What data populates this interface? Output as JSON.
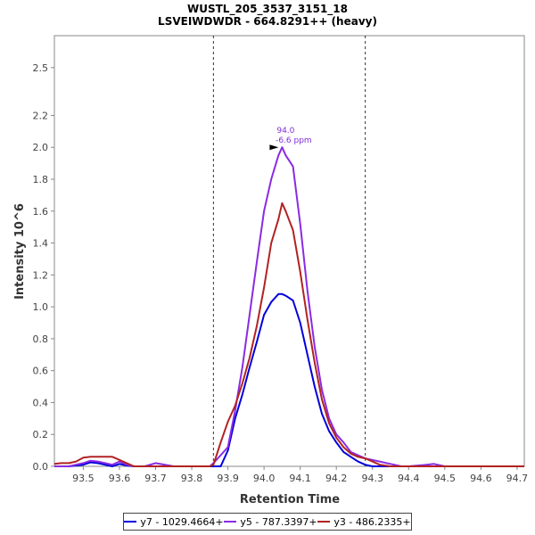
{
  "chart_data": {
    "type": "line",
    "title": "WUSTL_205_3537_3151_18",
    "subtitle": "LSVEIWDWDR - 664.8291++ (heavy)",
    "xlabel": "Retention Time",
    "ylabel": "Intensity 10^6",
    "xlim": [
      93.42,
      94.72
    ],
    "ylim": [
      0,
      2.7
    ],
    "x_ticks": [
      "93.5",
      "93.6",
      "93.7",
      "93.8",
      "93.9",
      "94.0",
      "94.1",
      "94.2",
      "94.3",
      "94.4",
      "94.5",
      "94.6",
      "94.7"
    ],
    "y_ticks": [
      "0.0",
      "0.2",
      "0.4",
      "0.6",
      "0.8",
      "1.0",
      "1.2",
      "1.4",
      "1.6",
      "1.8",
      "2.0",
      "2.2",
      "2.5"
    ],
    "boundaries": [
      93.86,
      94.28
    ],
    "annotation": {
      "x": 94.05,
      "y": 2.0,
      "line1": "94.0",
      "line2": "-6.6 ppm"
    },
    "series": [
      {
        "name": "y7 - 1029.4664+",
        "color": "#0000dd",
        "x": [
          93.42,
          93.46,
          93.5,
          93.52,
          93.54,
          93.56,
          93.58,
          93.6,
          93.62,
          93.64,
          93.67,
          93.7,
          93.75,
          93.8,
          93.85,
          93.88,
          93.9,
          93.92,
          93.94,
          93.96,
          93.98,
          94.0,
          94.02,
          94.04,
          94.05,
          94.06,
          94.08,
          94.1,
          94.12,
          94.14,
          94.16,
          94.18,
          94.2,
          94.22,
          94.24,
          94.26,
          94.28,
          94.3,
          94.35,
          94.4,
          94.45,
          94.5,
          94.6,
          94.72
        ],
        "y": [
          0.0,
          0.0,
          0.01,
          0.025,
          0.02,
          0.01,
          0.0,
          0.015,
          0.005,
          0.0,
          0.0,
          0.0,
          0.0,
          0.0,
          0.0,
          0.0,
          0.1,
          0.3,
          0.45,
          0.62,
          0.78,
          0.95,
          1.03,
          1.08,
          1.08,
          1.07,
          1.04,
          0.9,
          0.7,
          0.5,
          0.33,
          0.22,
          0.15,
          0.09,
          0.06,
          0.03,
          0.01,
          0.0,
          0.0,
          0.0,
          0.0,
          0.0,
          0.0,
          0.0
        ]
      },
      {
        "name": "y5 - 787.3397+",
        "color": "#8a2be2",
        "x": [
          93.42,
          93.46,
          93.5,
          93.52,
          93.54,
          93.56,
          93.58,
          93.6,
          93.62,
          93.64,
          93.67,
          93.7,
          93.75,
          93.8,
          93.85,
          93.86,
          93.88,
          93.9,
          93.92,
          93.94,
          93.96,
          93.98,
          94.0,
          94.02,
          94.04,
          94.05,
          94.06,
          94.08,
          94.1,
          94.12,
          94.14,
          94.16,
          94.18,
          94.2,
          94.22,
          94.24,
          94.26,
          94.28,
          94.3,
          94.32,
          94.35,
          94.38,
          94.4,
          94.45,
          94.47,
          94.5,
          94.6,
          94.72
        ],
        "y": [
          0.0,
          0.0,
          0.02,
          0.035,
          0.03,
          0.02,
          0.01,
          0.03,
          0.01,
          0.0,
          0.0,
          0.02,
          0.0,
          0.0,
          0.0,
          0.02,
          0.07,
          0.12,
          0.35,
          0.62,
          0.95,
          1.28,
          1.6,
          1.8,
          1.95,
          2.0,
          1.95,
          1.88,
          1.52,
          1.1,
          0.75,
          0.48,
          0.3,
          0.2,
          0.15,
          0.09,
          0.07,
          0.05,
          0.04,
          0.03,
          0.015,
          0.0,
          0.0,
          0.01,
          0.015,
          0.0,
          0.0,
          0.0
        ]
      },
      {
        "name": "y3 - 486.2335+",
        "color": "#b22222",
        "x": [
          93.42,
          93.44,
          93.46,
          93.48,
          93.5,
          93.52,
          93.54,
          93.56,
          93.58,
          93.6,
          93.62,
          93.64,
          93.67,
          93.7,
          93.75,
          93.8,
          93.85,
          93.86,
          93.88,
          93.9,
          93.92,
          93.94,
          93.96,
          93.98,
          94.0,
          94.02,
          94.04,
          94.05,
          94.06,
          94.08,
          94.1,
          94.12,
          94.14,
          94.16,
          94.18,
          94.2,
          94.22,
          94.24,
          94.26,
          94.28,
          94.3,
          94.32,
          94.35,
          94.4,
          94.5,
          94.6,
          94.72
        ],
        "y": [
          0.015,
          0.02,
          0.02,
          0.03,
          0.055,
          0.06,
          0.06,
          0.06,
          0.06,
          0.04,
          0.02,
          0.0,
          0.0,
          0.0,
          0.0,
          0.0,
          0.0,
          0.01,
          0.15,
          0.28,
          0.38,
          0.52,
          0.68,
          0.88,
          1.12,
          1.4,
          1.55,
          1.65,
          1.6,
          1.48,
          1.22,
          0.92,
          0.65,
          0.42,
          0.27,
          0.18,
          0.12,
          0.08,
          0.06,
          0.05,
          0.03,
          0.01,
          0.0,
          0.0,
          0.0,
          0.0,
          0.0
        ]
      }
    ]
  }
}
